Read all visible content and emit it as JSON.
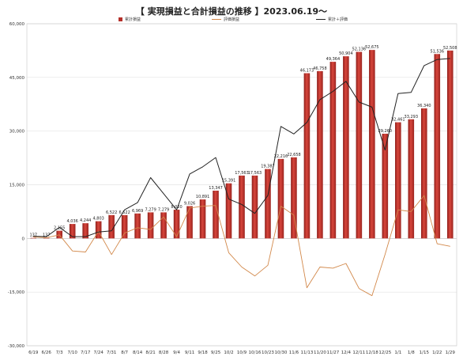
{
  "chart_data": {
    "type": "bar",
    "title": "【 実現損益と合計損益の推移 】2023.06.19〜",
    "categories": [
      "6/19",
      "6/26",
      "7/3",
      "7/10",
      "7/17",
      "7/24",
      "7/31",
      "8/7",
      "8/14",
      "8/21",
      "8/28",
      "9/4",
      "9/11",
      "9/18",
      "9/25",
      "10/2",
      "10/9",
      "10/16",
      "10/23",
      "10/30",
      "11/6",
      "11/13",
      "11/20",
      "11/27",
      "12/4",
      "12/11",
      "12/18",
      "12/25",
      "1/1",
      "1/8",
      "1/15",
      "1/22",
      "1/29"
    ],
    "ylim": [
      -30000,
      60000
    ],
    "yticks": [
      -30000,
      -15000,
      0,
      15000,
      30000,
      45000,
      60000
    ],
    "ytick_labels": [
      "-30,000",
      "-15,000",
      "0",
      "15,000",
      "30,000",
      "45,000",
      "60,000"
    ],
    "grid": true,
    "legend_position": "top",
    "series": [
      {
        "name": "累計損益",
        "kind": "bar",
        "color": "#b5302a",
        "values": [
          137,
          137,
          2155,
          4036,
          4244,
          4803,
          6522,
          6522,
          6969,
          7279,
          7279,
          8020,
          9026,
          10891,
          13347,
          15391,
          17563,
          17563,
          19387,
          22216,
          22658,
          46173,
          46758,
          49364,
          50904,
          52136,
          52675,
          29260,
          32461,
          33293,
          36340,
          51536,
          52508
        ],
        "labels": [
          "137",
          "137",
          "2,155",
          "4,036",
          "4,244",
          "4,803",
          "6,522",
          "6,522",
          "6,969",
          "7,279",
          "7,279",
          "8,020",
          "9,026",
          "10,891",
          "13,347",
          "15,391",
          "17,563",
          "17,563",
          "19,387",
          "22,216",
          "22,658",
          "46,173",
          "46,758",
          "49,364",
          "50,904",
          "52,136",
          "52,675",
          "29,260",
          "32,461",
          "33,293",
          "36,340",
          "51,536",
          "52,508"
        ]
      },
      {
        "name": "評価損益",
        "kind": "line",
        "color": "#d2884a",
        "values": [
          400,
          200,
          1000,
          -3500,
          -3800,
          2000,
          -4500,
          1500,
          3000,
          2500,
          6000,
          500,
          8500,
          9000,
          9200,
          -4000,
          -8000,
          -10500,
          -7500,
          9000,
          6500,
          -13800,
          -8000,
          -8300,
          -7000,
          -14000,
          -16000,
          -4500,
          8000,
          7500,
          12000,
          -1500,
          -2200
        ]
      },
      {
        "name": "累計＋評価",
        "kind": "line",
        "color": "#222222",
        "values": [
          600,
          500,
          3100,
          500,
          500,
          1800,
          2100,
          8000,
          10000,
          17000,
          12500,
          8000,
          18000,
          20000,
          22600,
          11000,
          9500,
          7000,
          12000,
          31300,
          29200,
          32400,
          38800,
          41100,
          43900,
          38100,
          36700,
          24700,
          40500,
          40800,
          48300,
          50000,
          50300
        ]
      }
    ]
  }
}
